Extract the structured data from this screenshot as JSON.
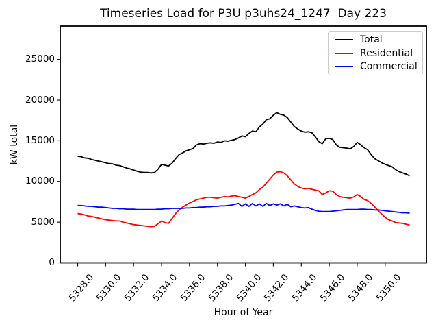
{
  "figure": {
    "background": "#ffffff",
    "axis_color": "#000000",
    "legend_border_color": "#cccccc"
  },
  "chart_data": {
    "type": "line",
    "title": "Timeseries Load for P3U p3uhs24_1247  Day 223",
    "xlabel": "Hour of Year",
    "ylabel": "kW total",
    "grid": false,
    "legend_position": "upper right",
    "xlim": [
      5326.75,
      5352.95
    ],
    "ylim": [
      0,
      29100
    ],
    "x_ticks": {
      "values": [
        5328,
        5330,
        5332,
        5334,
        5336,
        5338,
        5340,
        5342,
        5344,
        5346,
        5348,
        5350
      ],
      "labels": [
        "5328.0",
        "5330.0",
        "5332.0",
        "5334.0",
        "5336.0",
        "5338.0",
        "5340.0",
        "5342.0",
        "5344.0",
        "5346.0",
        "5348.0",
        "5350.0"
      ]
    },
    "y_ticks": {
      "values": [
        0,
        5000,
        10000,
        15000,
        20000,
        25000
      ],
      "labels": [
        "0",
        "5000",
        "10000",
        "15000",
        "20000",
        "25000"
      ]
    },
    "x_start": 5328.0,
    "x_step": 0.25,
    "series": [
      {
        "name": "Total",
        "color": "#000000",
        "values": [
          13100,
          13050,
          12900,
          12850,
          12700,
          12600,
          12500,
          12400,
          12300,
          12200,
          12150,
          12000,
          11950,
          11800,
          11650,
          11550,
          11400,
          11250,
          11150,
          11100,
          11100,
          11050,
          11100,
          11500,
          12100,
          12000,
          11900,
          12250,
          12800,
          13300,
          13500,
          13750,
          13900,
          14050,
          14500,
          14650,
          14600,
          14700,
          14750,
          14700,
          14850,
          14800,
          15000,
          14950,
          15050,
          15150,
          15350,
          15600,
          15500,
          15900,
          16200,
          16100,
          16700,
          17050,
          17600,
          17700,
          18150,
          18450,
          18250,
          18150,
          17850,
          17300,
          16750,
          16450,
          16200,
          16050,
          16100,
          16000,
          15500,
          14900,
          14650,
          15250,
          15300,
          15150,
          14500,
          14200,
          14150,
          14100,
          14000,
          14300,
          14800,
          14500,
          14150,
          13900,
          13300,
          12800,
          12550,
          12300,
          12100,
          11950,
          11800,
          11450,
          11200,
          11050,
          10900,
          10700
        ]
      },
      {
        "name": "Residential",
        "color": "#ff0000",
        "values": [
          6050,
          6000,
          5900,
          5750,
          5700,
          5600,
          5500,
          5400,
          5300,
          5250,
          5200,
          5150,
          5150,
          5000,
          4900,
          4800,
          4700,
          4650,
          4600,
          4550,
          4500,
          4450,
          4500,
          4800,
          5150,
          4950,
          4850,
          5450,
          6050,
          6500,
          6850,
          7100,
          7350,
          7550,
          7750,
          7850,
          7950,
          8050,
          8050,
          8000,
          7950,
          8050,
          8150,
          8100,
          8200,
          8250,
          8150,
          8050,
          7950,
          8150,
          8400,
          8600,
          9000,
          9300,
          9800,
          10300,
          10800,
          11150,
          11200,
          11050,
          10700,
          10200,
          9700,
          9400,
          9200,
          9100,
          9150,
          9050,
          8950,
          8850,
          8400,
          8600,
          8850,
          8800,
          8400,
          8150,
          8050,
          8000,
          7950,
          8100,
          8400,
          8150,
          7800,
          7650,
          7300,
          6900,
          6400,
          6000,
          5600,
          5300,
          5150,
          4950,
          4900,
          4850,
          4750,
          4650
        ]
      },
      {
        "name": "Commercial",
        "color": "#0000ff",
        "values": [
          7050,
          7050,
          7000,
          6950,
          6950,
          6900,
          6850,
          6850,
          6800,
          6750,
          6700,
          6700,
          6650,
          6650,
          6600,
          6600,
          6600,
          6550,
          6550,
          6550,
          6550,
          6550,
          6550,
          6600,
          6600,
          6650,
          6650,
          6700,
          6700,
          6700,
          6700,
          6750,
          6750,
          6800,
          6800,
          6850,
          6850,
          6900,
          6900,
          6950,
          6950,
          7000,
          7000,
          7050,
          7100,
          7200,
          7300,
          6950,
          7250,
          6950,
          7300,
          7000,
          7250,
          6950,
          7300,
          7050,
          7250,
          7100,
          7250,
          7000,
          7200,
          6900,
          7000,
          6900,
          6800,
          6750,
          6800,
          6600,
          6450,
          6350,
          6300,
          6300,
          6300,
          6350,
          6400,
          6450,
          6500,
          6550,
          6550,
          6550,
          6550,
          6600,
          6600,
          6550,
          6550,
          6500,
          6500,
          6450,
          6400,
          6350,
          6300,
          6250,
          6200,
          6150,
          6150,
          6100
        ]
      }
    ]
  }
}
